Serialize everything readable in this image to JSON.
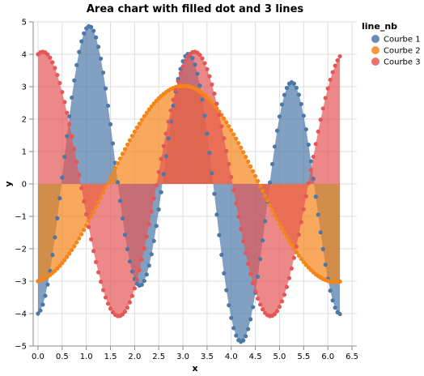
{
  "chart_data": {
    "type": "area",
    "title": "Area chart with filled dot and 3 lines",
    "xlabel": "x",
    "ylabel": "y",
    "xlim": [
      -0.1,
      6.6
    ],
    "ylim": [
      -5,
      5
    ],
    "x_ticks": [
      "0.0",
      "0.5",
      "1.0",
      "1.5",
      "2.0",
      "2.5",
      "3.0",
      "3.5",
      "4.0",
      "4.5",
      "5.0",
      "5.5",
      "6.0",
      "6.5"
    ],
    "y_ticks": [
      "−5",
      "−4",
      "−3",
      "−2",
      "−1",
      "0",
      "1",
      "2",
      "3",
      "4",
      "5"
    ],
    "x_domain": [
      0,
      6.28
    ],
    "point_step": 0.05,
    "grid": true,
    "legend": {
      "title": "line_nb",
      "position": "right"
    },
    "series": [
      {
        "name": "Courbe 1",
        "color": "#4c78a8",
        "function": "-4*cos(3*x) + sin(x)",
        "formula_note": "approximate curve fitted to the plotted points"
      },
      {
        "name": "Courbe 2",
        "color": "#f58518",
        "function": "-3*cos(x) + 0.4*sin(x)",
        "formula_note": "approximate curve fitted to the plotted points"
      },
      {
        "name": "Courbe 3",
        "color": "#e45756",
        "function": "4*cos(2*x) + 0.8*sin(2*x)",
        "formula_note": "approximate curve fitted to the plotted points"
      }
    ]
  }
}
